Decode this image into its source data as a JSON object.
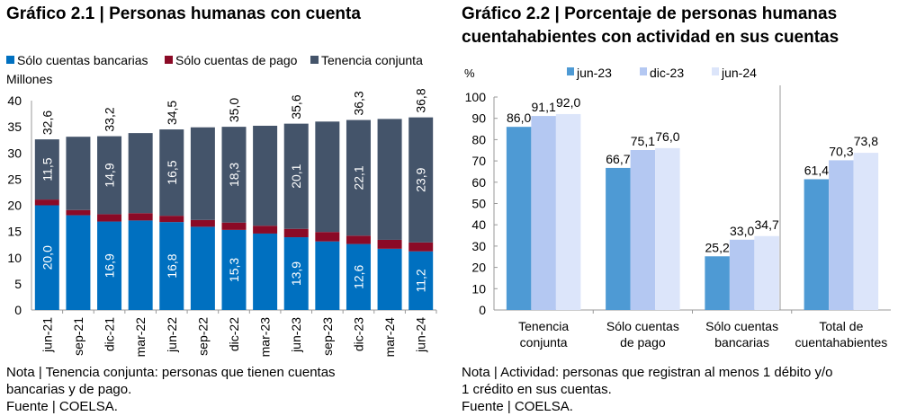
{
  "left": {
    "title": "Gráfico 2.1 | Personas humanas con cuenta",
    "notes": [
      "Nota | Tenencia conjunta: personas que tienen cuentas",
      "bancarias y de pago.",
      "Fuente | COELSA."
    ]
  },
  "right": {
    "title_line1": "Gráfico 2.2 | Porcentaje de personas humanas",
    "title_line2": "cuentahabientes con actividad en sus cuentas",
    "notes": [
      "Nota | Actividad: personas que registran al menos 1 débito y/o",
      "1 crédito en sus cuentas.",
      "Fuente | COELSA."
    ]
  },
  "chart_data": [
    {
      "type": "bar",
      "stacked": true,
      "ylabel": "Millones",
      "ylim": [
        0,
        40
      ],
      "yticks": [
        0,
        5,
        10,
        15,
        20,
        25,
        30,
        35,
        40
      ],
      "categories": [
        "jun-21",
        "sep-21",
        "dic-21",
        "mar-22",
        "jun-22",
        "sep-22",
        "dic-22",
        "mar-23",
        "jun-23",
        "sep-23",
        "dic-23",
        "mar-24",
        "jun-24"
      ],
      "legend_position": "top",
      "series": [
        {
          "name": "Sólo cuentas bancarias",
          "color": "#0070C0",
          "values": [
            20.0,
            18.1,
            16.9,
            17.1,
            16.8,
            15.9,
            15.3,
            14.6,
            13.9,
            13.1,
            12.6,
            11.7,
            11.2
          ],
          "labeled": [
            true,
            false,
            true,
            false,
            true,
            false,
            true,
            false,
            true,
            false,
            true,
            false,
            true
          ]
        },
        {
          "name": "Sólo cuentas de pago",
          "color": "#8B0A26",
          "values": [
            1.1,
            1.0,
            1.4,
            1.4,
            1.2,
            1.3,
            1.4,
            1.5,
            1.6,
            1.8,
            1.6,
            1.7,
            1.7
          ],
          "labeled": [
            false,
            false,
            false,
            false,
            false,
            false,
            false,
            false,
            false,
            false,
            false,
            false,
            false
          ]
        },
        {
          "name": "Tenencia conjunta",
          "color": "#44546A",
          "values": [
            11.5,
            14.0,
            14.9,
            15.3,
            16.5,
            17.7,
            18.3,
            19.1,
            20.1,
            21.1,
            22.1,
            23.1,
            23.9
          ],
          "labeled": [
            true,
            false,
            true,
            false,
            true,
            false,
            true,
            false,
            true,
            false,
            true,
            false,
            true
          ]
        }
      ],
      "totals": [
        32.6,
        33.1,
        33.2,
        33.8,
        34.5,
        34.9,
        35.0,
        35.2,
        35.6,
        36.0,
        36.3,
        36.5,
        36.8
      ],
      "totals_labeled": [
        true,
        false,
        true,
        false,
        true,
        false,
        true,
        false,
        true,
        false,
        true,
        false,
        true
      ]
    },
    {
      "type": "bar",
      "ylabel": "%",
      "ylim": [
        0,
        100
      ],
      "yticks": [
        0,
        10,
        20,
        30,
        40,
        50,
        60,
        70,
        80,
        90,
        100
      ],
      "categories": [
        [
          "Tenencia",
          "conjunta"
        ],
        [
          "Sólo cuentas",
          "de pago"
        ],
        [
          "Sólo cuentas",
          "bancarias"
        ],
        [
          "Total de",
          "cuentahabientes"
        ]
      ],
      "legend_position": "top",
      "series": [
        {
          "name": "jun-23",
          "color": "#4E9AD4",
          "values": [
            86.0,
            66.7,
            25.2,
            61.4
          ]
        },
        {
          "name": "dic-23",
          "color": "#B4C8F2",
          "values": [
            91.1,
            75.1,
            33.0,
            70.3
          ]
        },
        {
          "name": "jun-24",
          "color": "#DCE5FA",
          "values": [
            92.0,
            76.0,
            34.7,
            73.8
          ]
        }
      ]
    }
  ]
}
